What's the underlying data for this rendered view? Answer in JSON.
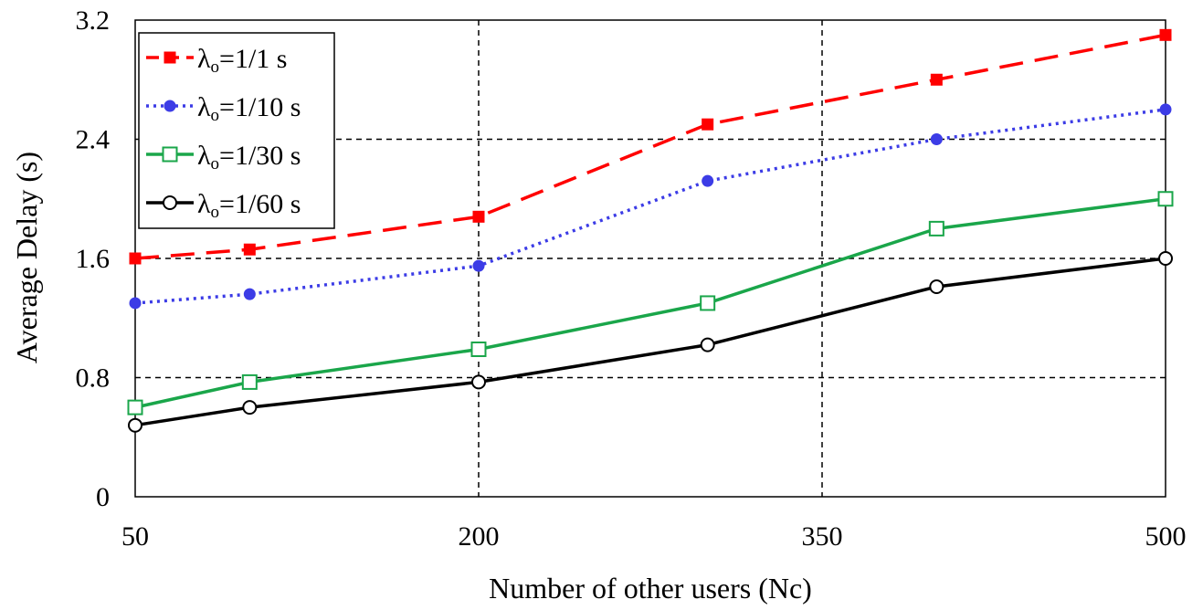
{
  "chart_data": {
    "type": "line",
    "title": "",
    "xlabel": "Number of other users (Nc)",
    "ylabel": "Average Delay (s)",
    "xlim": [
      50,
      500
    ],
    "ylim": [
      0,
      3.2
    ],
    "xticks": [
      50,
      200,
      350,
      500
    ],
    "yticks": [
      0,
      0.8,
      1.6,
      2.4,
      3.2
    ],
    "xtick_labels": [
      "50",
      "200",
      "350",
      "500"
    ],
    "ytick_labels": [
      "0",
      "0.8",
      "1.6",
      "2.4",
      "3.2"
    ],
    "grid": "dashed",
    "legend_position": "top-left",
    "x": [
      50,
      100,
      200,
      300,
      400,
      500
    ],
    "series": [
      {
        "name": "λo=1/1 s",
        "legend_main": "λ",
        "legend_sub": "o",
        "legend_rest": "=1/1 s",
        "color": "#ff0000",
        "dash": "long-dash",
        "marker": "filled-square",
        "values": [
          1.6,
          1.66,
          1.88,
          2.5,
          2.8,
          3.1
        ]
      },
      {
        "name": "λo=1/10 s",
        "legend_main": "λ",
        "legend_sub": "o",
        "legend_rest": "=1/10 s",
        "color": "#3c3ce6",
        "dash": "dotted",
        "marker": "filled-circle",
        "values": [
          1.3,
          1.36,
          1.55,
          2.12,
          2.4,
          2.6
        ]
      },
      {
        "name": "λo=1/30 s",
        "legend_main": "λ",
        "legend_sub": "o",
        "legend_rest": "=1/30 s",
        "color": "#1aa64a",
        "dash": "solid",
        "marker": "open-square",
        "values": [
          0.6,
          0.77,
          0.99,
          1.3,
          1.8,
          2.0
        ]
      },
      {
        "name": "λo=1/60 s",
        "legend_main": "λ",
        "legend_sub": "o",
        "legend_rest": "=1/60 s",
        "color": "#000000",
        "dash": "solid",
        "marker": "open-circle",
        "values": [
          0.48,
          0.6,
          0.77,
          1.02,
          1.41,
          1.6
        ]
      }
    ]
  }
}
